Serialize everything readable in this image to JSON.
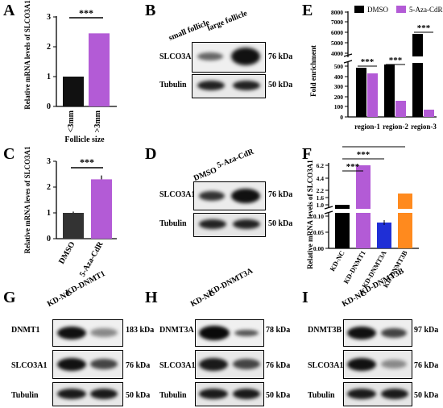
{
  "panels": {
    "A": {
      "letter": "A",
      "ylabel": "Relative mRNA levels of SLCO3A1",
      "xlabel": "Follicle size",
      "ylim": [
        0,
        3
      ],
      "yticks": [
        "0",
        "1",
        "2",
        "3"
      ],
      "categories": [
        "<3mm",
        ">3mm"
      ],
      "values": [
        1.0,
        2.45
      ],
      "errors": [
        0.02,
        0.03
      ],
      "colors": [
        "#111111",
        "#b35bd6"
      ],
      "significance": "***"
    },
    "B": {
      "letter": "B",
      "lanes": [
        "small follicle",
        "large follicle"
      ],
      "rows": [
        {
          "label": "SLCO3A1",
          "kda": "76 kDa"
        },
        {
          "label": "Tubulin",
          "kda": "50 kDa"
        }
      ]
    },
    "C": {
      "letter": "C",
      "ylabel": "Relative mRNA leves of SLCO3A1",
      "ylim": [
        0,
        3
      ],
      "yticks": [
        "0",
        "1",
        "2",
        "3"
      ],
      "categories": [
        "DMSO",
        "5-Aza-CdR"
      ],
      "values": [
        1.0,
        2.3
      ],
      "errors": [
        0.05,
        0.15
      ],
      "colors": [
        "#333333",
        "#b35bd6"
      ],
      "significance": "***"
    },
    "D": {
      "letter": "D",
      "lanes": [
        "DMSO",
        "5-Aza-CdR"
      ],
      "rows": [
        {
          "label": "SLCO3A1",
          "kda": "76 kDa"
        },
        {
          "label": "Tubulin",
          "kda": "50 kDa"
        }
      ]
    },
    "E": {
      "letter": "E",
      "ylabel": "Fold enrichment",
      "legend": [
        "DMSO",
        "5-Aza-CdR"
      ],
      "colors": [
        "#000000",
        "#b35bd6"
      ],
      "yticks_top": [
        "4000",
        "5000",
        "6000",
        "7000",
        "8000"
      ],
      "yticks_bottom": [
        "0",
        "100",
        "200",
        "300",
        "400",
        "500"
      ],
      "categories": [
        "region-1",
        "region-2",
        "region-3"
      ],
      "significance": [
        "***",
        "***",
        "***"
      ]
    },
    "F": {
      "letter": "F",
      "ylabel": "Relative mRNA levels of SLCO3A1",
      "yticks_top": [
        "1.0",
        "1.6",
        "2.2",
        "4.4",
        "6.2"
      ],
      "yticks_bottom": [
        "0.00",
        "0.05",
        "0.10"
      ],
      "categories": [
        "KD-NC",
        "KD-DNMT1",
        "KD-DNMT3A",
        "KD-DNMT3B"
      ],
      "colors": [
        "#000000",
        "#b35bd6",
        "#1f2fd6",
        "#ff8a1e"
      ],
      "significance": [
        "***",
        "***",
        "***"
      ]
    },
    "G": {
      "letter": "G",
      "lanes": [
        "KD-NC",
        "KD-DNMT1"
      ],
      "rows": [
        {
          "label": "DNMT1",
          "kda": "183 kDa"
        },
        {
          "label": "SLCO3A1",
          "kda": "76 kDa"
        },
        {
          "label": "Tubulin",
          "kda": "50 kDa"
        }
      ]
    },
    "H": {
      "letter": "H",
      "lanes": [
        "KD-NC",
        "KD-DNMT3A"
      ],
      "rows": [
        {
          "label": "DNMT3A",
          "kda": "78 kDa"
        },
        {
          "label": "SLCO3A1",
          "kda": "76 kDa"
        },
        {
          "label": "Tubulin",
          "kda": "50 kDa"
        }
      ]
    },
    "I": {
      "letter": "I",
      "lanes": [
        "KD-NC",
        "KD-DNMT3B"
      ],
      "rows": [
        {
          "label": "DNMT3B",
          "kda": "97 kDa"
        },
        {
          "label": "SLCO3A1",
          "kda": "76 kDa"
        },
        {
          "label": "Tubulin",
          "kda": "50 kDa"
        }
      ]
    }
  },
  "chart_data": [
    {
      "type": "bar",
      "panel": "A",
      "categories": [
        "<3mm",
        ">3mm"
      ],
      "values": [
        1.0,
        2.45
      ],
      "xlabel": "Follicle size",
      "ylabel": "Relative mRNA levels of SLCO3A1",
      "ylim": [
        0,
        3
      ]
    },
    {
      "type": "bar",
      "panel": "C",
      "categories": [
        "DMSO",
        "5-Aza-CdR"
      ],
      "values": [
        1.0,
        2.3
      ],
      "ylabel": "Relative mRNA leves of SLCO3A1",
      "ylim": [
        0,
        3
      ]
    },
    {
      "type": "bar",
      "panel": "E",
      "categories": [
        "region-1",
        "region-2",
        "region-3"
      ],
      "series": [
        {
          "name": "DMSO",
          "values": [
            490,
            560,
            6100
          ]
        },
        {
          "name": "5-Aza-CdR",
          "values": [
            430,
            160,
            70
          ]
        }
      ],
      "ylabel": "Fold enrichment",
      "axis_break": [
        500,
        4000
      ]
    },
    {
      "type": "bar",
      "panel": "F",
      "categories": [
        "KD-NC",
        "KD-DNMT1",
        "KD-DNMT3A",
        "KD-DNMT3B"
      ],
      "values": [
        1.0,
        6.0,
        0.08,
        2.0
      ],
      "ylabel": "Relative mRNA levels of SLCO3A1"
    }
  ]
}
